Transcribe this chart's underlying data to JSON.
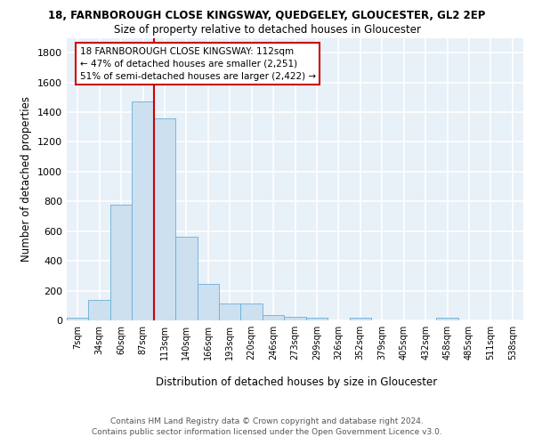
{
  "title1": "18, FARNBOROUGH CLOSE KINGSWAY, QUEDGELEY, GLOUCESTER, GL2 2EP",
  "title2": "Size of property relative to detached houses in Gloucester",
  "xlabel": "Distribution of detached houses by size in Gloucester",
  "ylabel": "Number of detached properties",
  "categories": [
    "7sqm",
    "34sqm",
    "60sqm",
    "87sqm",
    "113sqm",
    "140sqm",
    "166sqm",
    "193sqm",
    "220sqm",
    "246sqm",
    "273sqm",
    "299sqm",
    "326sqm",
    "352sqm",
    "379sqm",
    "405sqm",
    "432sqm",
    "458sqm",
    "485sqm",
    "511sqm",
    "538sqm"
  ],
  "values": [
    18,
    135,
    780,
    1470,
    1360,
    565,
    245,
    115,
    115,
    35,
    25,
    15,
    0,
    15,
    0,
    0,
    0,
    20,
    0,
    0,
    0
  ],
  "bar_color": "#cce0f0",
  "bar_edge_color": "#6aafd6",
  "red_line_index": 3.5,
  "annotation_line1": "18 FARNBOROUGH CLOSE KINGSWAY: 112sqm",
  "annotation_line2": "← 47% of detached houses are smaller (2,251)",
  "annotation_line3": "51% of semi-detached houses are larger (2,422) →",
  "ylim_max": 1900,
  "background_color": "#e8f0f8",
  "grid_color": "#ffffff",
  "footer1": "Contains HM Land Registry data © Crown copyright and database right 2024.",
  "footer2": "Contains public sector information licensed under the Open Government Licence v3.0."
}
